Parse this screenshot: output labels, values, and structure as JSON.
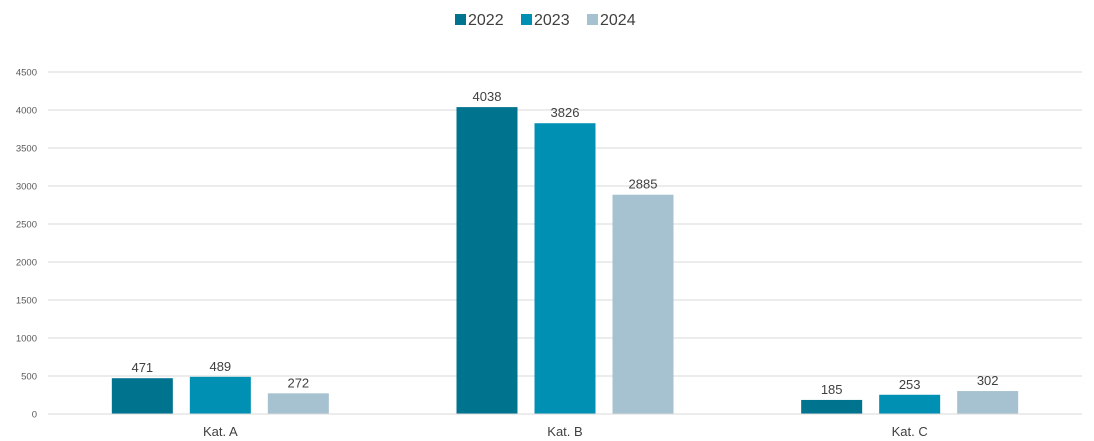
{
  "chart_data": {
    "type": "bar",
    "title": "",
    "xlabel": "",
    "ylabel": "",
    "categories": [
      "Kat. A",
      "Kat. B",
      "Kat. C"
    ],
    "series": [
      {
        "name": "2022",
        "values": [
          471,
          4038,
          185
        ],
        "color": "#00738F"
      },
      {
        "name": "2023",
        "values": [
          489,
          3826,
          253
        ],
        "color": "#0090B4"
      },
      {
        "name": "2024",
        "values": [
          272,
          2885,
          302
        ],
        "color": "#A6C1D0"
      }
    ],
    "ylim": [
      0,
      4500
    ],
    "yticks": [
      0,
      500,
      1000,
      1500,
      2000,
      2500,
      3000,
      3500,
      4000,
      4500
    ],
    "grid": true,
    "legend_position": "top-center",
    "data_labels": true
  }
}
